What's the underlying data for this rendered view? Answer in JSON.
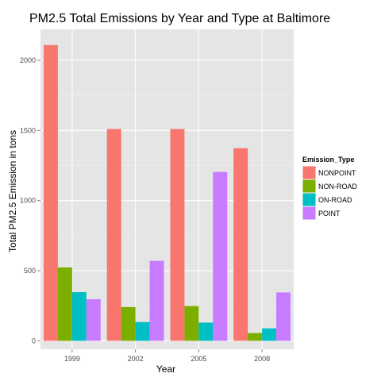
{
  "chart_data": {
    "type": "bar",
    "title": "PM2.5 Total Emissions by Year and Type at Baltimore",
    "xlabel": "Year",
    "ylabel": "Total PM2.5 Emission in tons",
    "categories": [
      "1999",
      "2002",
      "2005",
      "2008"
    ],
    "yticks": [
      0,
      500,
      1000,
      1500,
      2000
    ],
    "ylim": [
      -60,
      2220
    ],
    "grid": true,
    "legend": {
      "title": "Emission_Type",
      "placement": "right"
    },
    "series": [
      {
        "name": "NONPOINT",
        "color": "#F8766D",
        "values": [
          2108,
          1510,
          1510,
          1373
        ]
      },
      {
        "name": "NON-ROAD",
        "color": "#7CAE00",
        "values": [
          523,
          241,
          248,
          55
        ]
      },
      {
        "name": "ON-ROAD",
        "color": "#00BFC4",
        "values": [
          347,
          134,
          130,
          89
        ]
      },
      {
        "name": "POINT",
        "color": "#C77CFF",
        "values": [
          297,
          570,
          1204,
          345
        ]
      }
    ],
    "colors": {
      "panel_background": "#E5E5E5",
      "grid_major": "#FFFFFF",
      "grid_minor": "#F2F2F2"
    }
  }
}
